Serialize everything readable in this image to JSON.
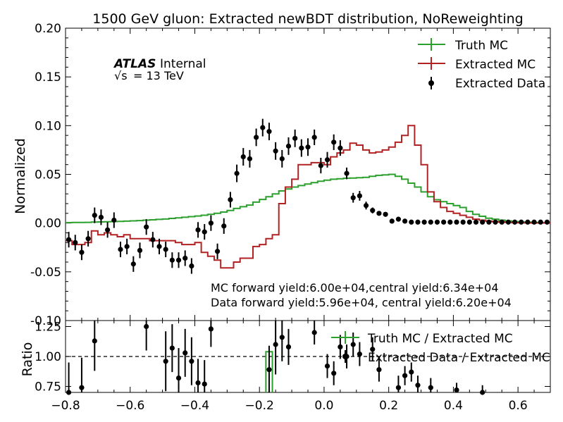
{
  "chart_data": [
    {
      "type": "step",
      "title": "1500 GeV gluon: Extracted newBDT distribution, NoReweighting",
      "ylabel": "Normalized",
      "xlabel": "",
      "xlim": [
        -0.8,
        0.7
      ],
      "ylim": [
        -0.1,
        0.2
      ],
      "yticks": [
        "-0.10",
        "-0.05",
        "0.00",
        "0.05",
        "0.10",
        "0.15",
        "0.20"
      ],
      "grid": false,
      "legend_position": "top-right",
      "annotations": {
        "atlas": "ATLAS",
        "internal": "Internal",
        "energy_sqrt": "√s",
        "energy_value": "= 13 TeV",
        "mc_yield": "MC forward yield:6.00e+04,central yield:6.34e+04",
        "data_yield": "Data forward yield:5.96e+04, central yield:6.20e+04"
      },
      "bin_edges": [
        -0.8,
        -0.78,
        -0.76,
        -0.74,
        -0.72,
        -0.7,
        -0.68,
        -0.66,
        -0.64,
        -0.62,
        -0.6,
        -0.58,
        -0.56,
        -0.54,
        -0.52,
        -0.5,
        -0.48,
        -0.46,
        -0.44,
        -0.42,
        -0.4,
        -0.38,
        -0.36,
        -0.34,
        -0.32,
        -0.3,
        -0.28,
        -0.26,
        -0.24,
        -0.22,
        -0.2,
        -0.18,
        -0.16,
        -0.14,
        -0.12,
        -0.1,
        -0.08,
        -0.06,
        -0.04,
        -0.02,
        0.0,
        0.02,
        0.04,
        0.06,
        0.08,
        0.1,
        0.12,
        0.14,
        0.16,
        0.18,
        0.2,
        0.22,
        0.24,
        0.26,
        0.28,
        0.3,
        0.32,
        0.34,
        0.36,
        0.38,
        0.4,
        0.42,
        0.44,
        0.46,
        0.48,
        0.5,
        0.52,
        0.54,
        0.56,
        0.58,
        0.6,
        0.62,
        0.64,
        0.66,
        0.68,
        0.7
      ],
      "series": [
        {
          "name": "Truth MC",
          "color": "#2ca02c",
          "style": "step",
          "values": [
            0.0005,
            0.0006,
            0.0007,
            0.0008,
            0.001,
            0.0012,
            0.0014,
            0.0016,
            0.0018,
            0.002,
            0.0023,
            0.0026,
            0.003,
            0.0034,
            0.0038,
            0.0042,
            0.0048,
            0.0054,
            0.006,
            0.0066,
            0.0073,
            0.0081,
            0.009,
            0.0101,
            0.0113,
            0.013,
            0.015,
            0.0168,
            0.0185,
            0.0215,
            0.0243,
            0.027,
            0.03,
            0.033,
            0.035,
            0.037,
            0.0385,
            0.04,
            0.0415,
            0.043,
            0.044,
            0.045,
            0.0455,
            0.046,
            0.0462,
            0.0465,
            0.047,
            0.048,
            0.049,
            0.0495,
            0.05,
            0.048,
            0.045,
            0.041,
            0.037,
            0.032,
            0.027,
            0.024,
            0.022,
            0.02,
            0.018,
            0.016,
            0.012,
            0.009,
            0.007,
            0.005,
            0.004,
            0.003,
            0.0022,
            0.0016,
            0.0012,
            0.0009,
            0.0006,
            0.0004,
            0.0002
          ]
        },
        {
          "name": "Extracted MC",
          "color": "#b22222",
          "style": "step",
          "values": [
            -0.018,
            -0.022,
            -0.022,
            -0.02,
            -0.008,
            -0.012,
            -0.01,
            -0.012,
            -0.014,
            -0.012,
            -0.016,
            -0.016,
            -0.016,
            -0.018,
            -0.018,
            -0.018,
            -0.018,
            -0.02,
            -0.022,
            -0.022,
            -0.02,
            -0.03,
            -0.034,
            -0.038,
            -0.046,
            -0.046,
            -0.04,
            -0.036,
            -0.036,
            -0.024,
            -0.022,
            -0.016,
            -0.012,
            0.02,
            0.037,
            0.045,
            0.06,
            0.06,
            0.062,
            0.062,
            0.06,
            0.068,
            0.072,
            0.075,
            0.082,
            0.08,
            0.075,
            0.072,
            0.073,
            0.075,
            0.078,
            0.083,
            0.09,
            0.1,
            0.08,
            0.06,
            0.032,
            0.022,
            0.016,
            0.012,
            0.01,
            0.008,
            0.006,
            0.004,
            0.003,
            0.002,
            0.0015,
            0.001,
            0.0008,
            0.0005,
            0.0003,
            0.0002,
            0.0001,
            0.0001,
            0.0001
          ]
        },
        {
          "name": "Extracted Data",
          "color": "#000000",
          "style": "points",
          "points": [
            [
              -0.79,
              -0.017,
              0.008
            ],
            [
              -0.77,
              -0.02,
              0.008
            ],
            [
              -0.75,
              -0.03,
              0.008
            ],
            [
              -0.73,
              -0.016,
              0.008
            ],
            [
              -0.71,
              0.008,
              0.008
            ],
            [
              -0.69,
              0.006,
              0.008
            ],
            [
              -0.67,
              -0.007,
              0.008
            ],
            [
              -0.65,
              0.003,
              0.008
            ],
            [
              -0.63,
              -0.027,
              0.008
            ],
            [
              -0.61,
              -0.024,
              0.008
            ],
            [
              -0.59,
              -0.042,
              0.008
            ],
            [
              -0.57,
              -0.028,
              0.008
            ],
            [
              -0.55,
              -0.004,
              0.008
            ],
            [
              -0.53,
              -0.017,
              0.008
            ],
            [
              -0.51,
              -0.024,
              0.008
            ],
            [
              -0.49,
              -0.027,
              0.008
            ],
            [
              -0.47,
              -0.038,
              0.008
            ],
            [
              -0.45,
              -0.038,
              0.008
            ],
            [
              -0.43,
              -0.036,
              0.008
            ],
            [
              -0.41,
              -0.044,
              0.008
            ],
            [
              -0.39,
              -0.007,
              0.008
            ],
            [
              -0.37,
              -0.009,
              0.008
            ],
            [
              -0.35,
              0.0,
              0.008
            ],
            [
              -0.33,
              -0.029,
              0.008
            ],
            [
              -0.31,
              -0.003,
              0.008
            ],
            [
              -0.29,
              0.024,
              0.008
            ],
            [
              -0.27,
              0.051,
              0.009
            ],
            [
              -0.25,
              0.068,
              0.009
            ],
            [
              -0.23,
              0.066,
              0.009
            ],
            [
              -0.21,
              0.088,
              0.009
            ],
            [
              -0.19,
              0.098,
              0.009
            ],
            [
              -0.17,
              0.094,
              0.009
            ],
            [
              -0.15,
              0.074,
              0.009
            ],
            [
              -0.13,
              0.066,
              0.009
            ],
            [
              -0.11,
              0.079,
              0.009
            ],
            [
              -0.09,
              0.087,
              0.009
            ],
            [
              -0.07,
              0.077,
              0.009
            ],
            [
              -0.05,
              0.078,
              0.009
            ],
            [
              -0.03,
              0.088,
              0.008
            ],
            [
              -0.01,
              0.059,
              0.008
            ],
            [
              0.01,
              0.065,
              0.008
            ],
            [
              0.03,
              0.083,
              0.008
            ],
            [
              0.05,
              0.077,
              0.008
            ],
            [
              0.07,
              0.051,
              0.006
            ],
            [
              0.09,
              0.026,
              0.005
            ],
            [
              0.11,
              0.028,
              0.005
            ],
            [
              0.13,
              0.018,
              0.004
            ],
            [
              0.15,
              0.013,
              0.003
            ],
            [
              0.17,
              0.01,
              0.002
            ],
            [
              0.19,
              0.009,
              0.002
            ],
            [
              0.21,
              0.002,
              0.001
            ],
            [
              0.23,
              0.004,
              0.001
            ],
            [
              0.25,
              0.002,
              0.001
            ],
            [
              0.27,
              0.001,
              0.001
            ],
            [
              0.29,
              0.001,
              0.001
            ],
            [
              0.31,
              0.001,
              0.001
            ],
            [
              0.33,
              0.001,
              0.001
            ],
            [
              0.35,
              0.001,
              0.001
            ],
            [
              0.37,
              0.001,
              0.001
            ],
            [
              0.39,
              0.001,
              0.001
            ],
            [
              0.41,
              0.001,
              0.001
            ],
            [
              0.43,
              0.001,
              0.001
            ],
            [
              0.45,
              0.001,
              0.001
            ],
            [
              0.47,
              0.001,
              0.001
            ],
            [
              0.49,
              0.001,
              0.001
            ],
            [
              0.51,
              0.001,
              0.001
            ],
            [
              0.53,
              0.001,
              0.001
            ],
            [
              0.55,
              0.001,
              0.001
            ],
            [
              0.57,
              0.001,
              0.001
            ],
            [
              0.59,
              0.001,
              0.001
            ],
            [
              0.61,
              0.001,
              0.001
            ],
            [
              0.63,
              0.001,
              0.001
            ],
            [
              0.65,
              0.001,
              0.001
            ],
            [
              0.67,
              0.001,
              0.001
            ],
            [
              0.69,
              0.001,
              0.001
            ]
          ]
        }
      ]
    },
    {
      "type": "step",
      "ylabel": "Ratio",
      "xlabel": "",
      "xlim": [
        -0.8,
        0.7
      ],
      "ylim": [
        0.7,
        1.3
      ],
      "xticks": [
        "−0.8",
        "−0.6",
        "−0.4",
        "−0.2",
        "0.0",
        "0.2",
        "0.4",
        "0.6"
      ],
      "yticks": [
        "0.75",
        "1.00",
        "1.25"
      ],
      "reference_line": 1.0,
      "legend_position": "top-right",
      "series": [
        {
          "name": "Truth MC / Extracted MC",
          "color": "#2ca02c",
          "style": "step",
          "bins": [
            [
              -0.18,
              -0.16,
              1.04
            ]
          ]
        },
        {
          "name": "Extracted Data / Extracted MC",
          "color": "#000000",
          "style": "points",
          "points": [
            [
              -0.79,
              0.7,
              0.25
            ],
            [
              -0.75,
              0.74,
              0.25
            ],
            [
              -0.71,
              1.13,
              0.25
            ],
            [
              -0.55,
              1.25,
              0.2
            ],
            [
              -0.49,
              0.96,
              0.25
            ],
            [
              -0.47,
              1.07,
              0.2
            ],
            [
              -0.45,
              0.82,
              0.25
            ],
            [
              -0.43,
              1.03,
              0.2
            ],
            [
              -0.41,
              0.96,
              0.2
            ],
            [
              -0.39,
              0.78,
              0.2
            ],
            [
              -0.37,
              0.77,
              0.2
            ],
            [
              -0.35,
              1.23,
              0.15
            ],
            [
              -0.17,
              0.89,
              0.2
            ],
            [
              -0.15,
              1.1,
              0.25
            ],
            [
              -0.13,
              1.16,
              0.2
            ],
            [
              -0.11,
              1.08,
              0.15
            ],
            [
              -0.03,
              1.2,
              0.1
            ],
            [
              0.01,
              0.92,
              0.1
            ],
            [
              0.03,
              0.86,
              0.1
            ],
            [
              0.05,
              1.08,
              0.1
            ],
            [
              0.07,
              1.0,
              0.1
            ],
            [
              0.09,
              1.1,
              0.1
            ],
            [
              0.11,
              1.02,
              0.1
            ],
            [
              0.15,
              1.06,
              0.1
            ],
            [
              0.17,
              0.89,
              0.1
            ],
            [
              0.23,
              0.74,
              0.1
            ],
            [
              0.25,
              0.84,
              0.08
            ],
            [
              0.27,
              0.87,
              0.08
            ],
            [
              0.29,
              0.76,
              0.08
            ],
            [
              0.33,
              0.74,
              0.08
            ],
            [
              0.41,
              0.72,
              0.06
            ],
            [
              0.49,
              0.7,
              0.06
            ]
          ]
        }
      ]
    }
  ]
}
